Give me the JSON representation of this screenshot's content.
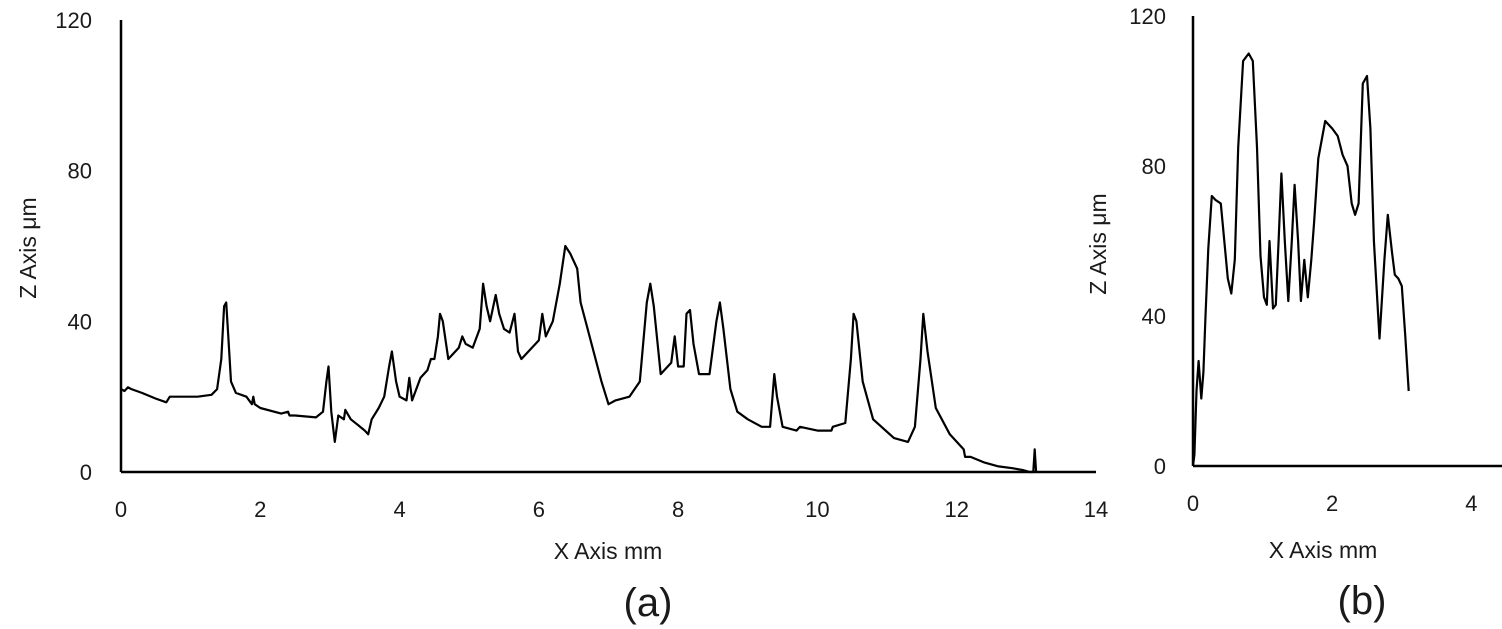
{
  "chart_data": [
    {
      "type": "line",
      "panel_label": "(a)",
      "xlabel": "X Axis mm",
      "ylabel": "Z Axis μm",
      "xlim": [
        0,
        14
      ],
      "ylim": [
        0,
        120
      ],
      "xticks": [
        0,
        2,
        4,
        6,
        8,
        10,
        12,
        14
      ],
      "yticks": [
        0,
        40,
        80,
        120
      ],
      "grid": false,
      "legend": "none",
      "series": [
        {
          "x": [
            0,
            0.05,
            0.1,
            0.15,
            0.3,
            0.5,
            0.65,
            0.7,
            0.9,
            1.1,
            1.3,
            1.38,
            1.44,
            1.48,
            1.51,
            1.54,
            1.58,
            1.65,
            1.8,
            1.88,
            1.9,
            1.92,
            2.0,
            2.3,
            2.4,
            2.42,
            2.5,
            2.8,
            2.9,
            2.95,
            2.98,
            3.02,
            3.07,
            3.12,
            3.2,
            3.22,
            3.3,
            3.4,
            3.5,
            3.55,
            3.6,
            3.7,
            3.78,
            3.85,
            3.89,
            3.95,
            4.0,
            4.1,
            4.14,
            4.18,
            4.3,
            4.4,
            4.45,
            4.5,
            4.55,
            4.58,
            4.62,
            4.7,
            4.85,
            4.9,
            4.95,
            5.05,
            5.15,
            5.2,
            5.25,
            5.3,
            5.38,
            5.43,
            5.5,
            5.58,
            5.65,
            5.7,
            5.75,
            5.9,
            6.0,
            6.05,
            6.1,
            6.2,
            6.3,
            6.38,
            6.45,
            6.55,
            6.6,
            6.7,
            6.9,
            7.0,
            7.1,
            7.3,
            7.45,
            7.55,
            7.6,
            7.65,
            7.75,
            7.9,
            7.95,
            8.0,
            8.08,
            8.12,
            8.17,
            8.22,
            8.3,
            8.45,
            8.55,
            8.6,
            8.65,
            8.75,
            8.85,
            9.0,
            9.2,
            9.32,
            9.38,
            9.42,
            9.5,
            9.7,
            9.75,
            10.0,
            10.2,
            10.22,
            10.4,
            10.48,
            10.52,
            10.56,
            10.65,
            10.8,
            11.1,
            11.3,
            11.4,
            11.48,
            11.52,
            11.58,
            11.7,
            11.9,
            12.1,
            12.12,
            12.2,
            12.4,
            12.6,
            12.8,
            12.95,
            13.05,
            13.1,
            13.12,
            13.14
          ],
          "values": [
            22,
            21.5,
            22.5,
            22,
            21,
            19.5,
            18.5,
            20,
            20,
            20,
            20.5,
            22,
            30,
            44,
            45,
            36,
            24,
            21,
            20,
            18,
            20,
            18,
            17,
            15.5,
            16,
            15,
            15,
            14.5,
            16,
            24,
            28,
            16,
            8,
            15,
            14,
            16.5,
            14,
            12.5,
            11,
            10,
            14,
            17,
            20,
            28,
            32,
            24,
            20,
            19,
            25,
            19,
            25,
            27,
            30,
            30,
            36,
            42,
            40,
            30,
            33,
            36,
            34,
            33,
            38,
            50,
            44,
            40,
            47,
            42,
            38,
            37,
            42,
            32,
            30,
            33,
            35,
            42,
            36,
            40,
            50,
            60,
            58,
            54,
            45,
            38,
            24,
            18,
            19,
            20,
            24,
            45,
            50,
            44,
            26,
            29,
            36,
            28,
            28,
            42,
            43,
            34,
            26,
            26,
            40,
            45,
            38,
            22,
            16,
            14,
            12,
            12,
            26,
            20,
            12,
            11,
            12,
            11,
            11,
            12,
            13,
            30,
            42,
            40,
            24,
            14,
            9,
            8,
            12,
            30,
            42,
            32,
            17,
            10,
            6,
            4,
            4,
            2.5,
            1.5,
            1,
            0.5,
            0,
            0,
            6,
            0
          ]
        }
      ]
    },
    {
      "type": "line",
      "panel_label": "(b)",
      "xlabel": "X Axis mm",
      "ylabel": "Z Axis μm",
      "xlim": [
        0,
        4.8
      ],
      "ylim": [
        0,
        120
      ],
      "xticks": [
        0,
        2,
        4
      ],
      "yticks": [
        0,
        40,
        80,
        120
      ],
      "grid": false,
      "legend": "none",
      "series": [
        {
          "x": [
            0,
            0.02,
            0.05,
            0.08,
            0.12,
            0.15,
            0.18,
            0.22,
            0.27,
            0.32,
            0.4,
            0.5,
            0.55,
            0.6,
            0.65,
            0.72,
            0.8,
            0.86,
            0.92,
            0.97,
            1.02,
            1.06,
            1.1,
            1.15,
            1.19,
            1.23,
            1.27,
            1.32,
            1.37,
            1.42,
            1.46,
            1.51,
            1.55,
            1.6,
            1.65,
            1.7,
            1.74,
            1.8,
            1.9,
            2.0,
            2.08,
            2.15,
            2.22,
            2.28,
            2.33,
            2.38,
            2.44,
            2.5,
            2.55,
            2.6,
            2.68,
            2.75,
            2.8,
            2.86,
            2.9,
            2.95,
            3.0,
            3.05,
            3.1
          ],
          "values": [
            0,
            3,
            20,
            28,
            18,
            25,
            40,
            58,
            72,
            71,
            70,
            50,
            46,
            55,
            85,
            108,
            110,
            108,
            85,
            56,
            45,
            43,
            60,
            42,
            43,
            60,
            78,
            60,
            44,
            60,
            75,
            60,
            44,
            55,
            45,
            55,
            65,
            82,
            92,
            90,
            88,
            83,
            80,
            70,
            67,
            70,
            102,
            104,
            90,
            60,
            34,
            55,
            67,
            57,
            51,
            50,
            48,
            35,
            20
          ]
        }
      ]
    }
  ]
}
